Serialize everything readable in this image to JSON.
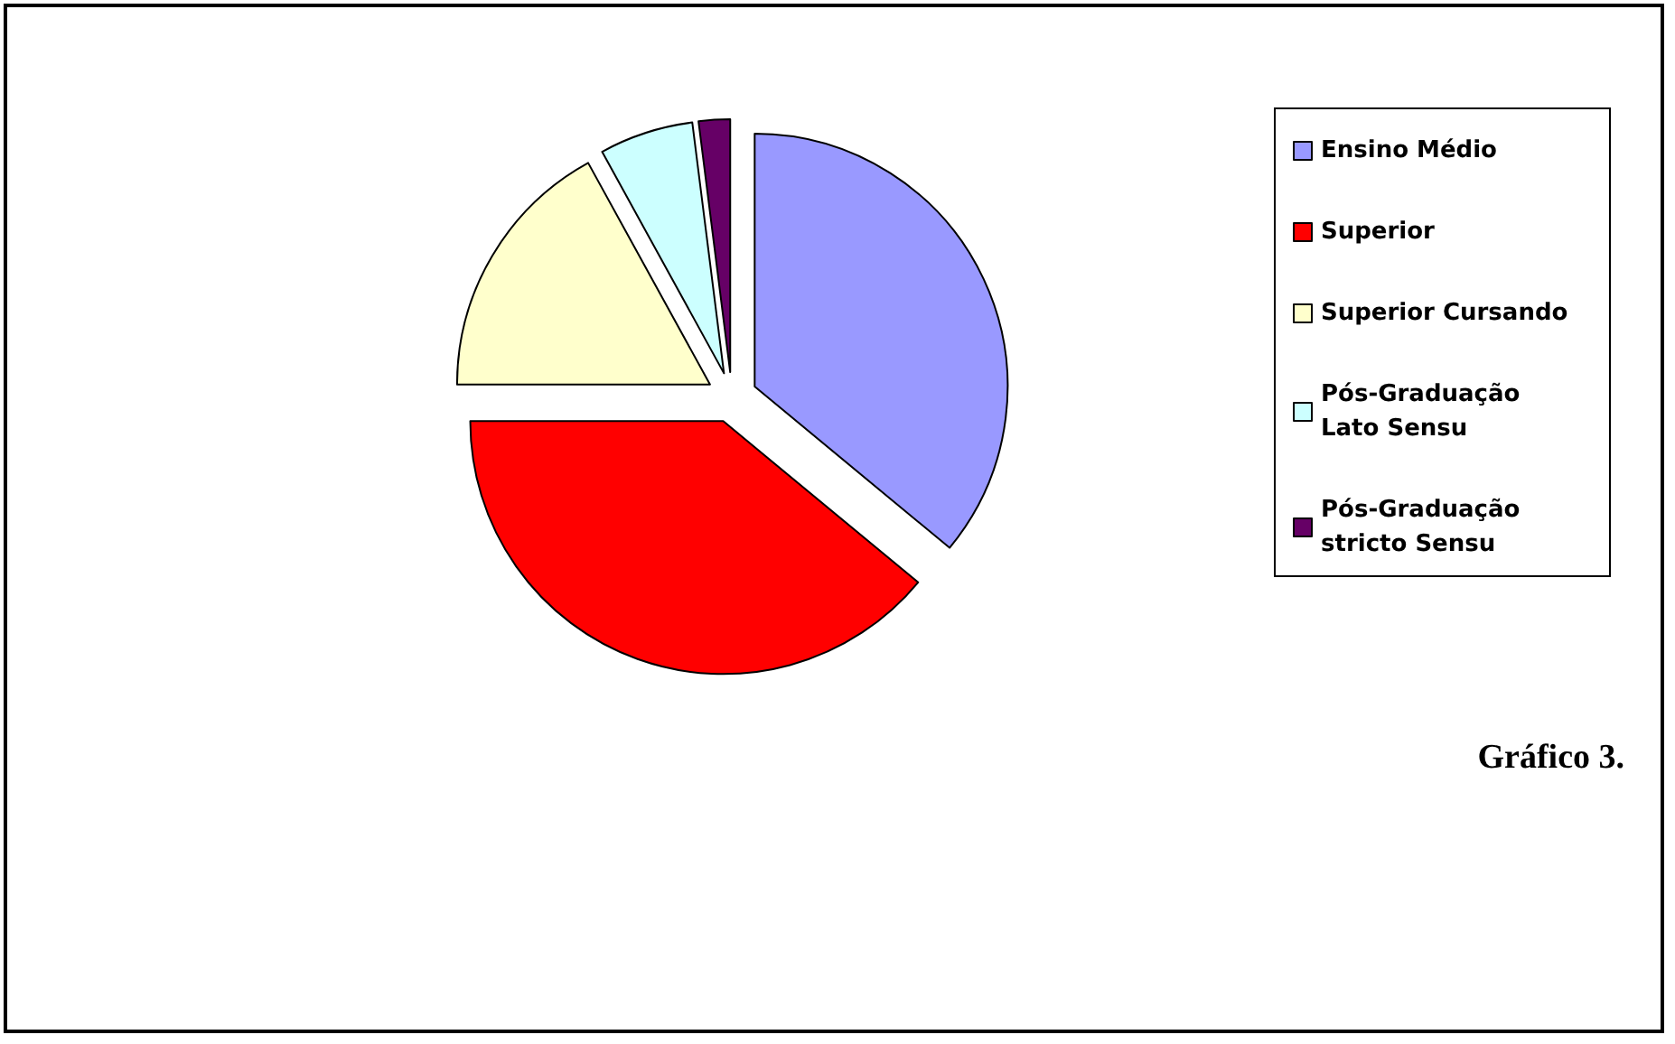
{
  "chart_data": {
    "type": "pie",
    "categories": [
      "Ensino Médio",
      "Superior",
      "Superior Cursando",
      "Pós-Graduação Lato Sensu",
      "Pós-Graduação stricto Sensu"
    ],
    "values": [
      36,
      39,
      17,
      6,
      2
    ],
    "colors": [
      "#9999ff",
      "#ff0000",
      "#ffffcc",
      "#ccffff",
      "#660066"
    ],
    "legend": "right",
    "annotations": [
      "Gráfico 3."
    ]
  }
}
